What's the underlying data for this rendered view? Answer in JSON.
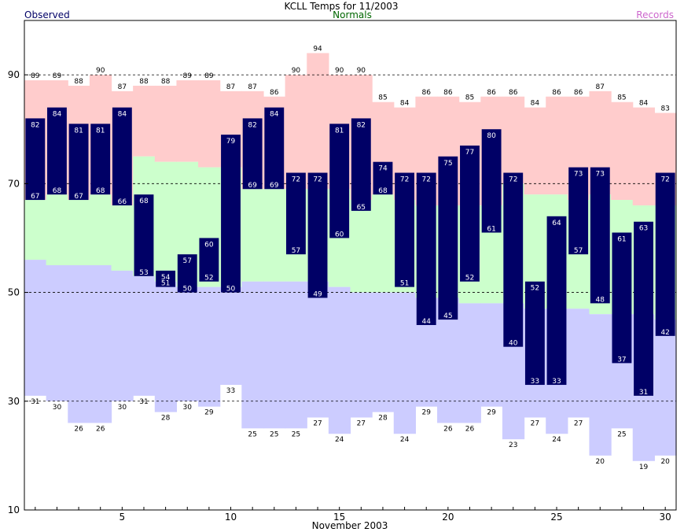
{
  "chart_data": {
    "type": "bar",
    "title": "KCLL Temps for 11/2003",
    "xlabel": "November 2003",
    "ylabel": "",
    "legend": [
      {
        "label": "Observed",
        "color": "#000066"
      },
      {
        "label": "Normals",
        "color": "#006600"
      },
      {
        "label": "Records",
        "color": "#cc66cc"
      }
    ],
    "colors": {
      "observed": "#000066",
      "normal_band": "#ccffcc",
      "record_high_band": "#ffcccc",
      "record_low_band": "#ccccff"
    },
    "ylim": [
      10,
      100
    ],
    "xlim": [
      0.5,
      30.5
    ],
    "y_ticks": [
      10,
      30,
      50,
      70,
      90
    ],
    "x_ticks": [
      5,
      10,
      15,
      20,
      25,
      30
    ],
    "grid": "dashed at 30, 50, 70, 90",
    "days": [
      1,
      2,
      3,
      4,
      5,
      6,
      7,
      8,
      9,
      10,
      11,
      12,
      13,
      14,
      15,
      16,
      17,
      18,
      19,
      20,
      21,
      22,
      23,
      24,
      25,
      26,
      27,
      28,
      29,
      30
    ],
    "series": [
      {
        "name": "Observed High",
        "values": [
          82,
          84,
          81,
          81,
          84,
          68,
          54,
          57,
          60,
          79,
          82,
          84,
          72,
          72,
          81,
          82,
          74,
          72,
          72,
          75,
          77,
          80,
          72,
          52,
          64,
          73,
          73,
          61,
          63,
          72
        ]
      },
      {
        "name": "Observed Low",
        "values": [
          67,
          68,
          67,
          68,
          66,
          53,
          51,
          50,
          52,
          50,
          69,
          69,
          57,
          49,
          60,
          65,
          68,
          51,
          44,
          45,
          52,
          61,
          40,
          33,
          33,
          57,
          48,
          37,
          31,
          42
        ]
      },
      {
        "name": "Record High",
        "values": [
          89,
          89,
          88,
          90,
          87,
          88,
          88,
          89,
          89,
          87,
          87,
          86,
          90,
          94,
          90,
          90,
          85,
          84,
          86,
          86,
          85,
          86,
          86,
          84,
          86,
          86,
          87,
          85,
          84,
          83
        ]
      },
      {
        "name": "Record Low",
        "values": [
          31,
          30,
          26,
          26,
          30,
          31,
          28,
          30,
          29,
          33,
          25,
          25,
          25,
          27,
          24,
          27,
          28,
          24,
          29,
          26,
          26,
          29,
          23,
          27,
          24,
          27,
          20,
          25,
          19,
          20
        ]
      },
      {
        "name": "Normal High",
        "values": [
          67,
          68,
          67,
          68,
          66,
          75,
          74,
          74,
          73,
          73,
          69,
          69,
          69,
          69,
          69,
          67,
          68,
          67,
          66,
          66,
          66,
          66,
          70,
          68,
          68,
          67,
          68,
          67,
          66,
          66
        ]
      },
      {
        "name": "Normal Low",
        "values": [
          56,
          55,
          55,
          55,
          54,
          53,
          52,
          51,
          51,
          51,
          52,
          52,
          52,
          52,
          51,
          50,
          50,
          50,
          49,
          49,
          48,
          48,
          48,
          47,
          47,
          47,
          46,
          46,
          46,
          45
        ]
      }
    ]
  }
}
